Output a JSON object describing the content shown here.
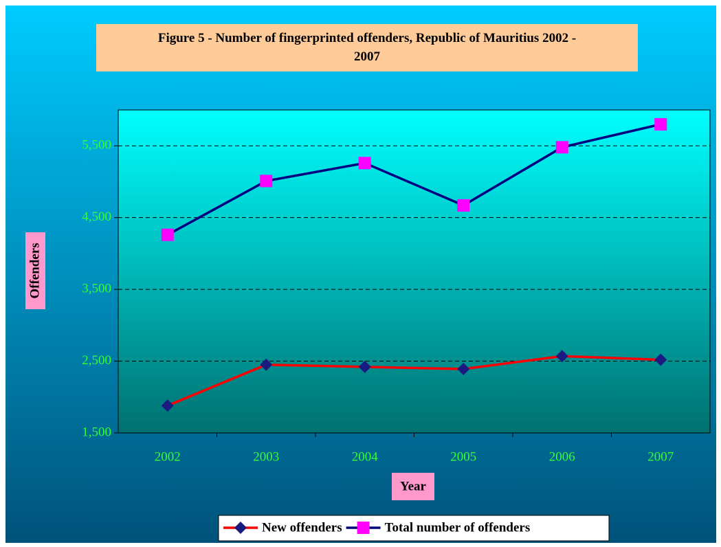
{
  "chart_data": {
    "type": "line",
    "title": "Figure 5 - Number of fingerprinted offenders, Republic of Mauritius 2002 - 2007",
    "x_label": "Year",
    "y_label": "Offenders",
    "categories": [
      "2002",
      "2003",
      "2004",
      "2005",
      "2006",
      "2007"
    ],
    "series": [
      {
        "name": "New offenders",
        "color": "#ff0000",
        "marker": "diamond",
        "marker_color": "#1a1a80",
        "values": [
          1880,
          2450,
          2420,
          2390,
          2570,
          2520
        ]
      },
      {
        "name": "Total number of offenders",
        "color": "#000080",
        "marker": "square",
        "marker_color": "#ff00ff",
        "values": [
          4260,
          5010,
          5260,
          4670,
          5480,
          5800
        ]
      }
    ],
    "ylim": [
      1500,
      6000
    ],
    "yticks": [
      {
        "value": 1500,
        "label": "1,500"
      },
      {
        "value": 2500,
        "label": "2,500"
      },
      {
        "value": 3500,
        "label": "3,500"
      },
      {
        "value": 4500,
        "label": "4,500"
      },
      {
        "value": 5500,
        "label": "5,500"
      }
    ],
    "grid": true,
    "legend": "bottom"
  }
}
